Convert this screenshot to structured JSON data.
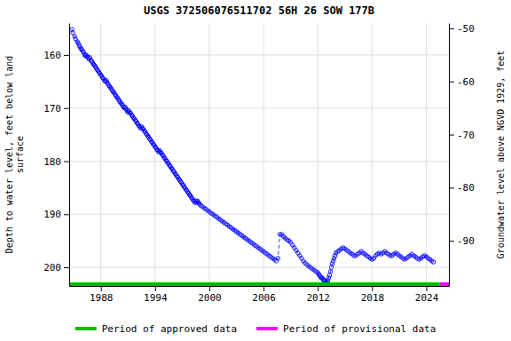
{
  "chart_data": {
    "type": "line",
    "title": "USGS 372506076511702 56H 26 SOW 177B",
    "ylabel": "Depth to water level, feet below land\nsurface",
    "y2label": "Groundwater level above NGVD 1929, feet",
    "xlim": [
      1984.5,
      2026.5
    ],
    "ylim": [
      203.5,
      154.0
    ],
    "y2lim": [
      -98.5,
      -49.0
    ],
    "xticks": [
      1988,
      1994,
      2000,
      2006,
      2012,
      2018,
      2024
    ],
    "yticks": [
      160,
      170,
      180,
      190,
      200
    ],
    "y2ticks": [
      -50,
      -60,
      -70,
      -80,
      -90
    ],
    "grid": true,
    "legend": "bottom",
    "series": [
      {
        "color": "#0000FF",
        "marker": "circle",
        "line_style": "dashed",
        "x": [
          1984.8,
          1984.9,
          1985.1,
          1985.2,
          1985.4,
          1985.5,
          1985.6,
          1985.7,
          1985.8,
          1985.9,
          1986.0,
          1986.1,
          1986.2,
          1986.3,
          1986.4,
          1986.5,
          1986.6,
          1986.7,
          1986.8,
          1986.9,
          1987.0,
          1987.1,
          1987.2,
          1987.3,
          1987.4,
          1987.5,
          1987.6,
          1987.7,
          1987.8,
          1987.9,
          1988.0,
          1988.1,
          1988.2,
          1988.3,
          1988.4,
          1988.5,
          1988.6,
          1988.7,
          1988.8,
          1988.9,
          1989.0,
          1989.1,
          1989.2,
          1989.3,
          1989.4,
          1989.5,
          1989.6,
          1989.7,
          1989.8,
          1989.9,
          1990.0,
          1990.1,
          1990.2,
          1990.3,
          1990.4,
          1990.5,
          1990.6,
          1990.7,
          1990.8,
          1990.9,
          1991.0,
          1991.1,
          1991.2,
          1991.3,
          1991.4,
          1991.5,
          1991.6,
          1991.7,
          1991.8,
          1991.9,
          1992.0,
          1992.1,
          1992.2,
          1992.3,
          1992.4,
          1992.5,
          1992.6,
          1992.7,
          1992.8,
          1992.9,
          1993.0,
          1993.1,
          1993.2,
          1993.3,
          1993.4,
          1993.5,
          1993.6,
          1993.7,
          1993.8,
          1993.9,
          1994.0,
          1994.1,
          1994.2,
          1994.3,
          1994.4,
          1994.5,
          1994.6,
          1994.7,
          1994.8,
          1994.9,
          1995.0,
          1995.1,
          1995.2,
          1995.3,
          1995.4,
          1995.5,
          1995.6,
          1995.7,
          1995.8,
          1995.9,
          1996.0,
          1996.1,
          1996.2,
          1996.3,
          1996.4,
          1996.5,
          1996.6,
          1996.7,
          1996.8,
          1996.9,
          1997.0,
          1997.1,
          1997.2,
          1997.3,
          1997.4,
          1997.5,
          1997.6,
          1997.7,
          1997.8,
          1997.9,
          1998.0,
          1998.1,
          1998.2,
          1998.3,
          1998.4,
          1998.5,
          1998.6,
          1998.7,
          1998.8,
          1998.9,
          1999.0,
          1999.2,
          1999.4,
          1999.6,
          1999.8,
          2000.0,
          2000.2,
          2000.4,
          2000.6,
          2000.8,
          2001.0,
          2001.2,
          2001.4,
          2001.6,
          2001.8,
          2002.0,
          2002.2,
          2002.4,
          2002.6,
          2002.8,
          2003.0,
          2003.2,
          2003.4,
          2003.6,
          2003.8,
          2004.0,
          2004.2,
          2004.4,
          2004.6,
          2004.8,
          2005.0,
          2005.2,
          2005.4,
          2005.6,
          2005.8,
          2006.0,
          2006.2,
          2006.4,
          2006.6,
          2006.8,
          2007.0,
          2007.2,
          2007.4,
          2007.6,
          2007.8,
          2008.0,
          2008.2,
          2008.4,
          2008.6,
          2008.8,
          2009.0,
          2009.2,
          2009.4,
          2009.6,
          2009.8,
          2010.0,
          2010.2,
          2010.4,
          2010.6,
          2010.8,
          2011.0,
          2011.2,
          2011.4,
          2011.6,
          2011.8,
          2012.0,
          2012.1,
          2012.2,
          2012.3,
          2012.4,
          2012.5,
          2012.6,
          2012.7,
          2012.8,
          2012.9,
          2013.0,
          2013.1,
          2013.2,
          2013.3,
          2013.4,
          2013.5,
          2013.6,
          2013.7,
          2013.8,
          2013.9,
          2014.0,
          2014.2,
          2014.4,
          2014.6,
          2014.8,
          2015.0,
          2015.2,
          2015.4,
          2015.6,
          2015.8,
          2016.0,
          2016.2,
          2016.4,
          2016.6,
          2016.8,
          2017.0,
          2017.2,
          2017.4,
          2017.6,
          2017.8,
          2018.0,
          2018.2,
          2018.4,
          2018.6,
          2018.8,
          2019.0,
          2019.2,
          2019.4,
          2019.6,
          2019.8,
          2020.0,
          2020.2,
          2020.4,
          2020.6,
          2020.8,
          2021.0,
          2021.2,
          2021.4,
          2021.6,
          2021.8,
          2022.0,
          2022.2,
          2022.4,
          2022.6,
          2022.8,
          2023.0,
          2023.2,
          2023.4,
          2023.6,
          2023.8,
          2024.0,
          2024.2,
          2024.4,
          2024.6,
          2024.8
        ],
        "values": [
          155.2,
          155.8,
          156.5,
          157.0,
          157.5,
          157.8,
          158.2,
          158.5,
          158.8,
          159.0,
          159.3,
          159.5,
          160.0,
          160.2,
          160.0,
          160.3,
          160.5,
          160.8,
          160.5,
          161.0,
          161.2,
          161.5,
          161.8,
          162.0,
          162.2,
          162.5,
          162.8,
          163.0,
          163.3,
          163.5,
          163.8,
          164.0,
          164.3,
          164.5,
          164.8,
          165.0,
          164.8,
          165.2,
          165.5,
          165.8,
          166.0,
          166.2,
          166.5,
          166.8,
          167.0,
          167.2,
          167.5,
          167.8,
          168.0,
          168.2,
          168.5,
          168.8,
          169.0,
          169.2,
          169.5,
          169.8,
          170.0,
          169.8,
          170.2,
          170.5,
          170.8,
          170.5,
          170.8,
          171.0,
          171.3,
          171.5,
          171.8,
          172.0,
          172.3,
          172.5,
          172.8,
          173.0,
          173.3,
          173.5,
          173.8,
          173.5,
          173.8,
          174.0,
          174.3,
          174.5,
          174.8,
          175.0,
          175.3,
          175.5,
          175.8,
          176.0,
          176.3,
          176.5,
          176.8,
          177.0,
          177.3,
          177.5,
          177.8,
          178.0,
          178.3,
          178.0,
          178.3,
          178.5,
          178.8,
          179.0,
          179.3,
          179.5,
          179.8,
          180.0,
          180.3,
          180.5,
          180.8,
          181.0,
          181.3,
          181.5,
          181.8,
          182.0,
          182.3,
          182.5,
          182.8,
          183.0,
          183.3,
          183.5,
          183.8,
          184.0,
          184.3,
          184.5,
          184.8,
          185.0,
          185.3,
          185.5,
          185.8,
          186.0,
          186.3,
          186.5,
          186.8,
          187.0,
          187.3,
          187.5,
          187.8,
          187.5,
          187.8,
          187.5,
          187.8,
          188.0,
          188.3,
          188.5,
          188.8,
          189.0,
          189.3,
          189.5,
          189.8,
          190.0,
          190.3,
          190.5,
          190.8,
          191.0,
          191.3,
          191.5,
          191.8,
          192.0,
          192.3,
          192.5,
          192.8,
          193.0,
          193.3,
          193.5,
          193.8,
          194.0,
          194.3,
          194.5,
          194.8,
          195.0,
          195.3,
          195.5,
          195.8,
          196.0,
          196.3,
          196.5,
          196.8,
          197.0,
          197.3,
          197.5,
          197.8,
          198.0,
          198.3,
          198.5,
          198.8,
          198.3,
          193.8,
          193.8,
          194.2,
          194.5,
          194.8,
          195.0,
          195.3,
          195.8,
          196.3,
          196.8,
          197.3,
          197.8,
          198.3,
          198.8,
          199.2,
          199.5,
          199.8,
          200.0,
          200.3,
          200.5,
          200.8,
          201.0,
          201.3,
          201.5,
          201.8,
          202.0,
          202.0,
          202.3,
          202.5,
          202.5,
          202.8,
          202.8,
          202.5,
          202.0,
          201.5,
          200.8,
          200.0,
          199.3,
          198.8,
          198.3,
          197.8,
          197.3,
          197.0,
          196.8,
          196.5,
          196.3,
          196.5,
          196.8,
          197.0,
          197.3,
          197.5,
          197.8,
          197.8,
          197.5,
          197.3,
          197.0,
          197.3,
          197.5,
          197.8,
          198.0,
          198.3,
          198.5,
          198.3,
          197.8,
          197.5,
          197.3,
          197.5,
          197.3,
          197.0,
          197.3,
          197.5,
          197.8,
          197.8,
          197.5,
          197.3,
          197.5,
          197.8,
          198.0,
          198.3,
          198.5,
          198.3,
          198.0,
          197.8,
          197.5,
          197.8,
          198.0,
          198.3,
          198.5,
          198.3,
          198.0,
          197.8,
          198.0,
          198.3,
          198.5,
          198.8,
          199.0
        ]
      },
      {
        "name": "Period of approved data",
        "color": "#00BB00",
        "line_style": "solid",
        "x": [
          1984.5,
          2025.5
        ],
        "values": [
          203.5,
          203.5
        ]
      },
      {
        "name": "Period of provisional data",
        "color": "#FF00FF",
        "line_style": "solid",
        "x": [
          2025.5,
          2026.5
        ],
        "values": [
          203.5,
          203.5
        ]
      }
    ]
  }
}
